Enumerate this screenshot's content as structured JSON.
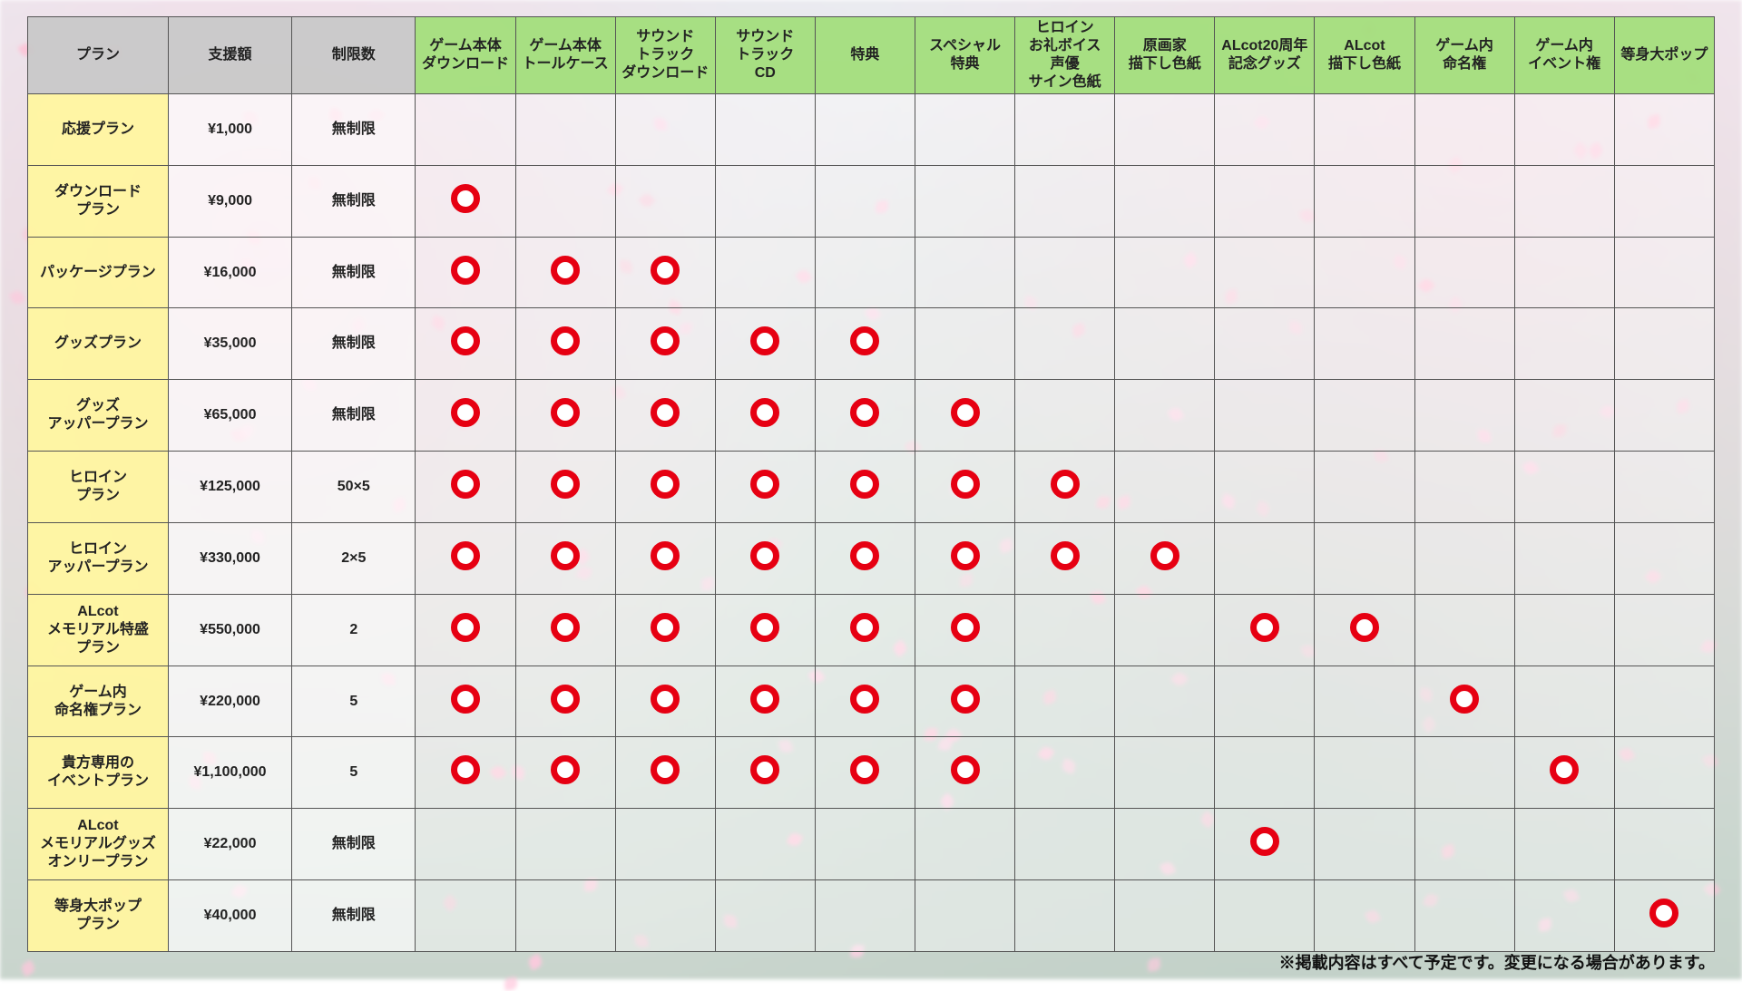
{
  "colors": {
    "circle_border": "#e60012",
    "circle_fill": "#ffffff",
    "circle_stroke_width": 7,
    "header_gray": "rgba(200,200,200,0.92)",
    "header_green": "rgba(163,222,124,0.95)",
    "plan_yellow": "rgba(255,245,160,0.95)",
    "cell_light": "rgba(255,255,255,0.68)",
    "cell_faint": "rgba(255,255,255,0.42)",
    "border": "#555555"
  },
  "table": {
    "type": "table",
    "col_widths_pct": [
      8.3,
      7.3,
      7.3,
      5.9,
      5.9,
      5.9,
      5.9,
      5.9,
      5.9,
      5.9,
      5.9,
      5.9,
      5.9,
      5.9,
      5.9,
      5.9
    ],
    "header_gray": [
      "プラン",
      "支援額",
      "制限数"
    ],
    "header_green": [
      "ゲーム本体\nダウンロード",
      "ゲーム本体\nトールケース",
      "サウンド\nトラック\nダウンロード",
      "サウンド\nトラック\nCD",
      "特典",
      "スペシャル\n特典",
      "ヒロイン\nお礼ボイス\n声優\nサイン色紙",
      "原画家\n描下し色紙",
      "ALcot20周年\n記念グッズ",
      "ALcot\n描下し色紙",
      "ゲーム内\n命名権",
      "ゲーム内\nイベント権",
      "等身大ポップ"
    ],
    "rows": [
      {
        "plan": "応援プラン",
        "price": "¥1,000",
        "limit": "無制限",
        "marks": [
          0,
          0,
          0,
          0,
          0,
          0,
          0,
          0,
          0,
          0,
          0,
          0,
          0
        ]
      },
      {
        "plan": "ダウンロード\nプラン",
        "price": "¥9,000",
        "limit": "無制限",
        "marks": [
          1,
          0,
          0,
          0,
          0,
          0,
          0,
          0,
          0,
          0,
          0,
          0,
          0
        ]
      },
      {
        "plan": "パッケージプラン",
        "price": "¥16,000",
        "limit": "無制限",
        "marks": [
          1,
          1,
          1,
          0,
          0,
          0,
          0,
          0,
          0,
          0,
          0,
          0,
          0
        ]
      },
      {
        "plan": "グッズプラン",
        "price": "¥35,000",
        "limit": "無制限",
        "marks": [
          1,
          1,
          1,
          1,
          1,
          0,
          0,
          0,
          0,
          0,
          0,
          0,
          0
        ]
      },
      {
        "plan": "グッズ\nアッパープラン",
        "price": "¥65,000",
        "limit": "無制限",
        "marks": [
          1,
          1,
          1,
          1,
          1,
          1,
          0,
          0,
          0,
          0,
          0,
          0,
          0
        ]
      },
      {
        "plan": "ヒロイン\nプラン",
        "price": "¥125,000",
        "limit": "50×5",
        "marks": [
          1,
          1,
          1,
          1,
          1,
          1,
          1,
          0,
          0,
          0,
          0,
          0,
          0
        ]
      },
      {
        "plan": "ヒロイン\nアッパープラン",
        "price": "¥330,000",
        "limit": "2×5",
        "marks": [
          1,
          1,
          1,
          1,
          1,
          1,
          1,
          1,
          0,
          0,
          0,
          0,
          0
        ]
      },
      {
        "plan": "ALcot\nメモリアル特盛\nプラン",
        "price": "¥550,000",
        "limit": "2",
        "marks": [
          1,
          1,
          1,
          1,
          1,
          1,
          0,
          0,
          1,
          1,
          0,
          0,
          0
        ]
      },
      {
        "plan": "ゲーム内\n命名権プラン",
        "price": "¥220,000",
        "limit": "5",
        "marks": [
          1,
          1,
          1,
          1,
          1,
          1,
          0,
          0,
          0,
          0,
          1,
          0,
          0
        ]
      },
      {
        "plan": "貴方専用の\nイベントプラン",
        "price": "¥1,100,000",
        "limit": "5",
        "marks": [
          1,
          1,
          1,
          1,
          1,
          1,
          0,
          0,
          0,
          0,
          0,
          1,
          0
        ]
      },
      {
        "plan": "ALcot\nメモリアルグッズ\nオンリープラン",
        "price": "¥22,000",
        "limit": "無制限",
        "marks": [
          0,
          0,
          0,
          0,
          0,
          0,
          0,
          0,
          1,
          0,
          0,
          0,
          0
        ]
      },
      {
        "plan": "等身大ポップ\nプラン",
        "price": "¥40,000",
        "limit": "無制限",
        "marks": [
          0,
          0,
          0,
          0,
          0,
          0,
          0,
          0,
          0,
          0,
          0,
          0,
          1
        ]
      }
    ]
  },
  "footnote": "※掲載内容はすべて予定です。変更になる場合があります。"
}
